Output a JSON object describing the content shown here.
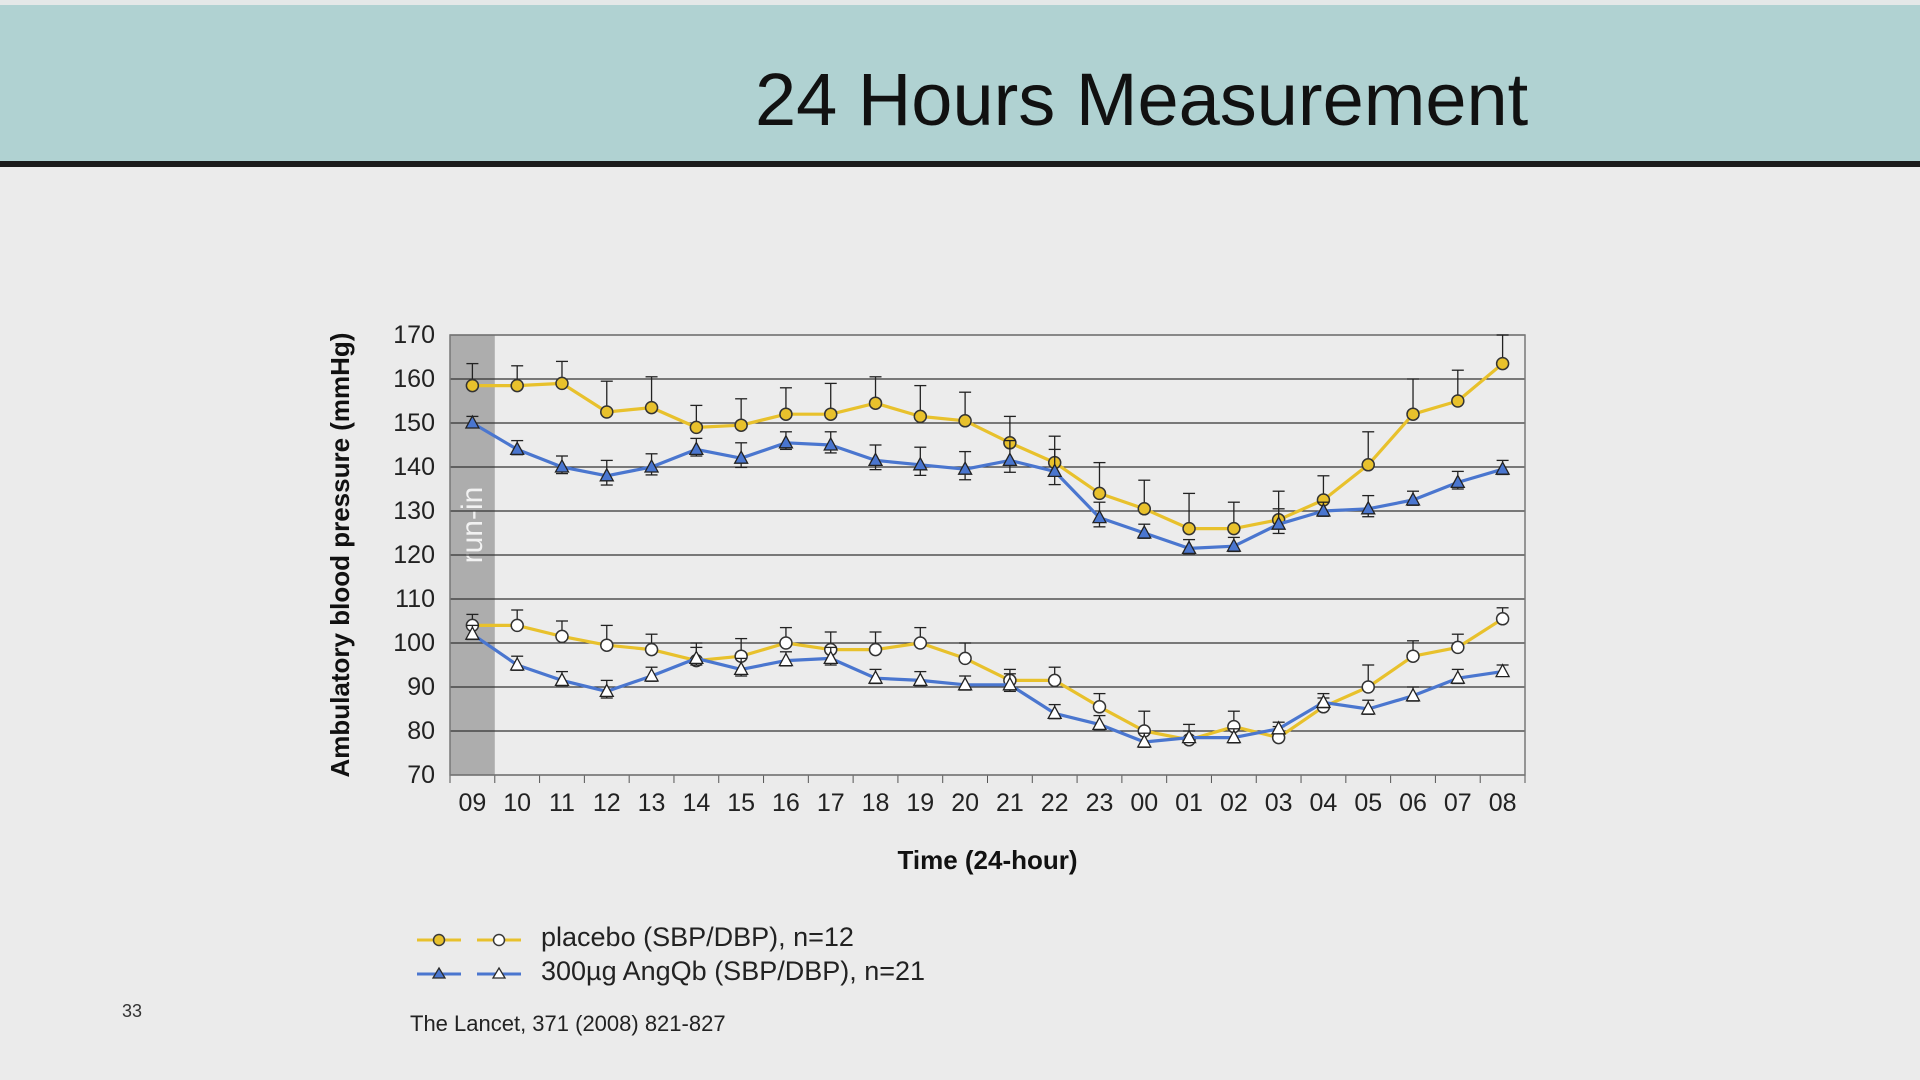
{
  "slide": {
    "title": "24 Hours Measurement",
    "page_number": "33",
    "citation": "The Lancet, 371 (2008) 821-827"
  },
  "colors": {
    "placebo": "#e8c12c",
    "angqb": "#4a76cf",
    "header_bg": "#b0d2d2",
    "runin": "#adadad"
  },
  "legend": [
    {
      "label": "placebo (SBP/DBP), n=12",
      "series": "placebo",
      "marker": "circle"
    },
    {
      "label": "300µg AngQb (SBP/DBP), n=21",
      "series": "angqb",
      "marker": "triangle"
    }
  ],
  "chart_data": {
    "type": "line",
    "title": "",
    "xlabel": "Time (24-hour)",
    "ylabel": "Ambulatory blood pressure (mmHg)",
    "ylim": [
      70,
      170
    ],
    "yticks": [
      70,
      80,
      90,
      100,
      110,
      120,
      130,
      140,
      150,
      160,
      170
    ],
    "grid": true,
    "runin_label": "run-in",
    "runin_category": "09",
    "categories": [
      "09",
      "10",
      "11",
      "12",
      "13",
      "14",
      "15",
      "16",
      "17",
      "18",
      "19",
      "20",
      "21",
      "22",
      "23",
      "00",
      "01",
      "02",
      "03",
      "04",
      "05",
      "06",
      "07",
      "08"
    ],
    "series": [
      {
        "name": "placebo SBP",
        "group": "placebo",
        "marker": "circle",
        "filled": true,
        "values": [
          158.5,
          158.5,
          159,
          152.5,
          153.5,
          149,
          149.5,
          152,
          152,
          154.5,
          151.5,
          150.5,
          145.5,
          141,
          134,
          130.5,
          126,
          126,
          128,
          132.5,
          140.5,
          152,
          155,
          163.5
        ],
        "errors": [
          5,
          4.5,
          5,
          7,
          7,
          5,
          6,
          6,
          7,
          6,
          7,
          6.5,
          6,
          6,
          7,
          6.5,
          8,
          6,
          6.5,
          5.5,
          7.5,
          8,
          7,
          6.5
        ]
      },
      {
        "name": "AngQb SBP",
        "group": "angqb",
        "marker": "triangle",
        "filled": true,
        "values": [
          150,
          144,
          140,
          138,
          140,
          144,
          142,
          145.5,
          145,
          141.5,
          140.5,
          139.5,
          141.5,
          139,
          128.5,
          125,
          121.5,
          122,
          127,
          130,
          130.5,
          132.5,
          136.5,
          139.5
        ],
        "errors": [
          1.5,
          2,
          2.5,
          3.5,
          3,
          2.5,
          3.5,
          2.5,
          3,
          3.5,
          4,
          4,
          4.5,
          5,
          3.5,
          2,
          2,
          2,
          3.5,
          2,
          3,
          2,
          2.5,
          2
        ]
      },
      {
        "name": "placebo DBP",
        "group": "placebo",
        "marker": "circle",
        "filled": false,
        "values": [
          104,
          104,
          101.5,
          99.5,
          98.5,
          96,
          97,
          100,
          98.5,
          98.5,
          100,
          96.5,
          91.5,
          91.5,
          85.5,
          80,
          78,
          81,
          78.5,
          85.5,
          90,
          97,
          99,
          105.5
        ],
        "errors": [
          2.5,
          3.5,
          3.5,
          4.5,
          3.5,
          4,
          4,
          3.5,
          4,
          4,
          3.5,
          3.5,
          2.5,
          3,
          3,
          4.5,
          3.5,
          3.5,
          2.5,
          2,
          5,
          3.5,
          3,
          2.5
        ]
      },
      {
        "name": "AngQb DBP",
        "group": "angqb",
        "marker": "triangle",
        "filled": false,
        "values": [
          102,
          95,
          91.5,
          89,
          92.5,
          96.5,
          94,
          96,
          96.5,
          92,
          91.5,
          90.5,
          90.5,
          84,
          81.5,
          77.5,
          78.5,
          78.5,
          80.5,
          86.5,
          85,
          88,
          92,
          93.5
        ],
        "errors": [
          2,
          2,
          2,
          2.5,
          2,
          2.5,
          2.5,
          2,
          2.5,
          2,
          2,
          2,
          2.5,
          2,
          2,
          2,
          1.5,
          2,
          1.5,
          2,
          2,
          2,
          2,
          1.5
        ]
      }
    ]
  }
}
